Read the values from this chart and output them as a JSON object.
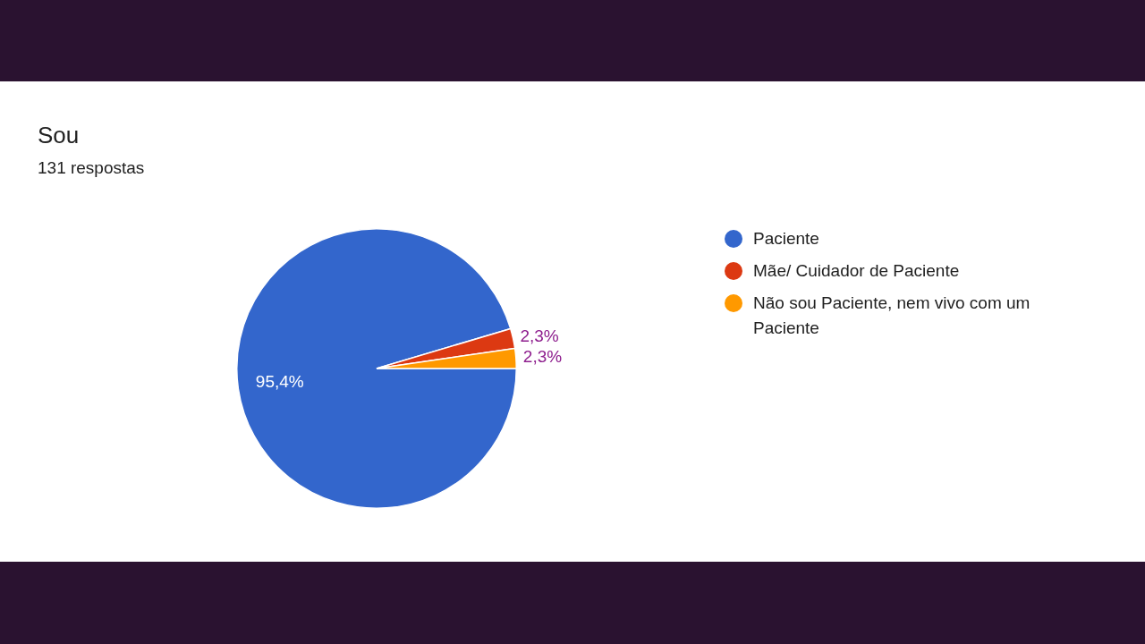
{
  "chart_data": {
    "type": "pie",
    "title": "Sou",
    "subtitle": "131 respostas",
    "categories": [
      "Paciente",
      "Mãe/ Cuidador de Paciente",
      "Não sou Paciente, nem vivo com um Paciente"
    ],
    "values": [
      95.4,
      2.3,
      2.3
    ],
    "colors": [
      "#3366cc",
      "#dc3912",
      "#ff9900"
    ],
    "value_labels": [
      "95,4%",
      "2,3%",
      "2,3%"
    ],
    "legend": "right"
  }
}
